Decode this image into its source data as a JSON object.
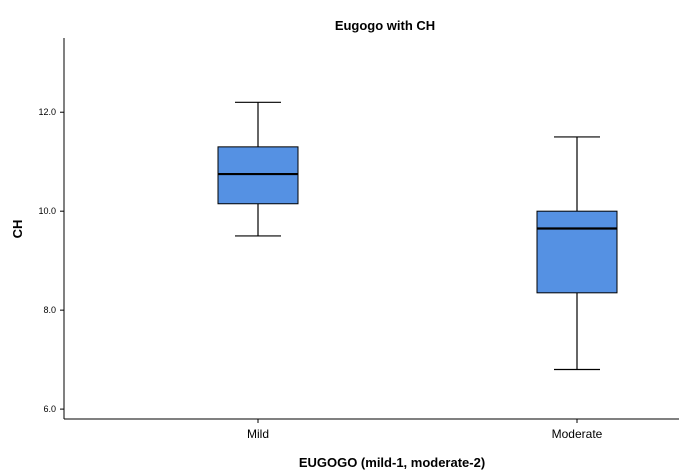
{
  "chart_data": {
    "type": "boxplot",
    "title": "Eugogo with CH",
    "xlabel": "EUGOGO (mild-1, moderate-2)",
    "ylabel": "CH",
    "ylim": [
      5.8,
      13.5
    ],
    "yticks": [
      6.0,
      8.0,
      10.0,
      12.0
    ],
    "ytick_labels": [
      "6.0",
      "8.0",
      "10.0",
      "12.0"
    ],
    "categories": [
      "Mild",
      "Moderate"
    ],
    "boxes": [
      {
        "category": "Mild",
        "min": 9.5,
        "q1": 10.15,
        "median": 10.75,
        "q3": 11.3,
        "max": 12.2
      },
      {
        "category": "Moderate",
        "min": 6.8,
        "q1": 8.35,
        "median": 9.65,
        "q3": 10.0,
        "max": 11.5
      }
    ],
    "box_color": "#5591E3",
    "grid": false
  }
}
